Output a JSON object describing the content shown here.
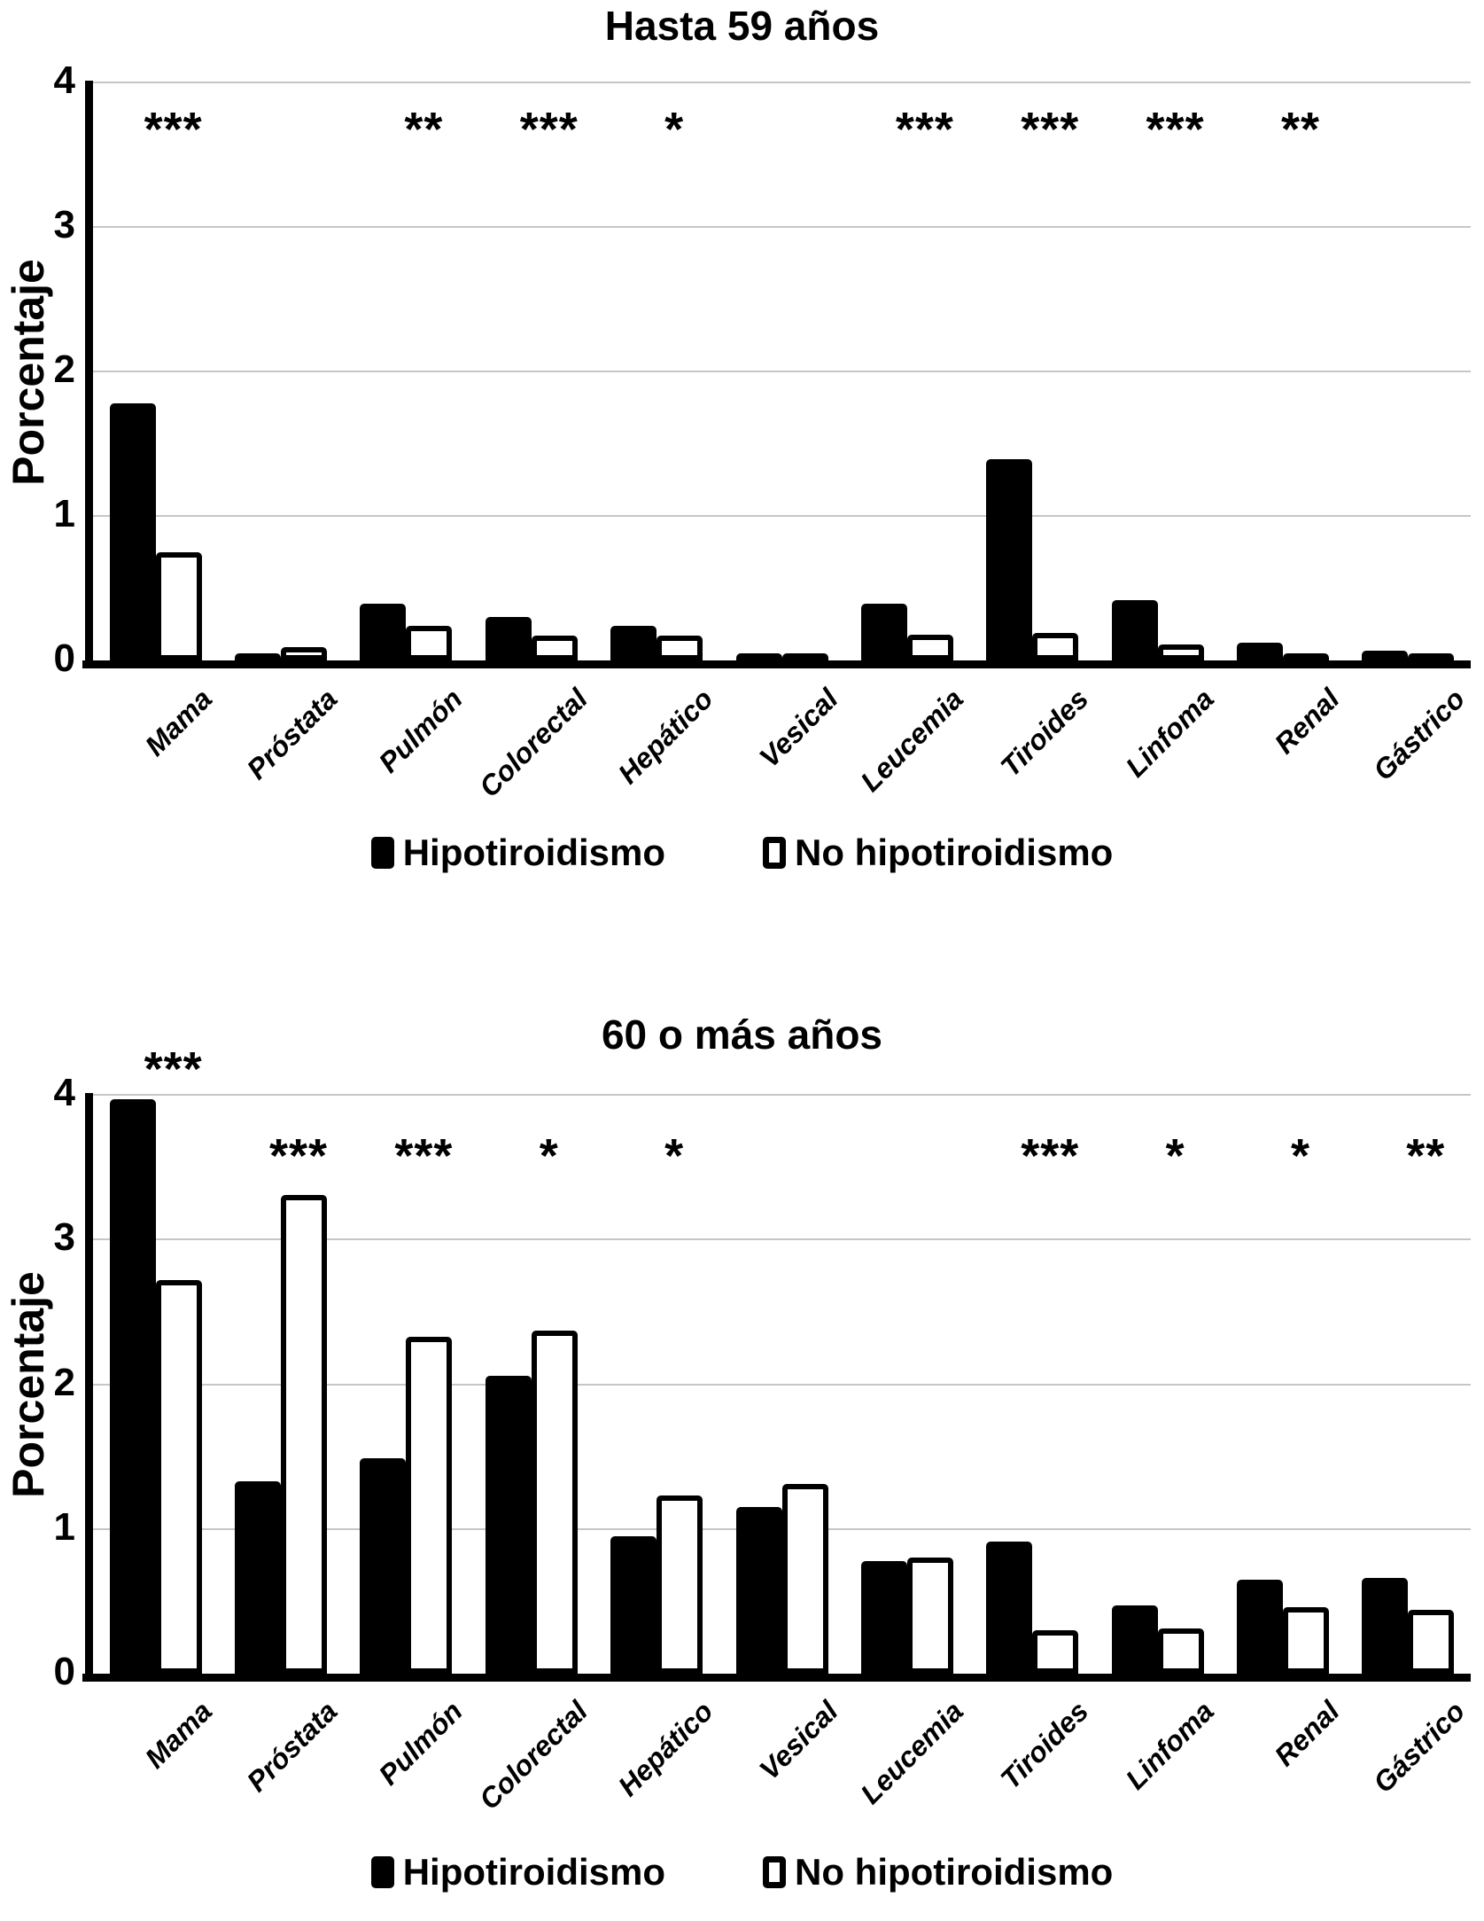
{
  "figure": {
    "background_color": "#ffffff",
    "gridline_color": "#c6c6c6",
    "axis_color": "#000000"
  },
  "legend": {
    "items": [
      {
        "label": "Hipotiroidismo",
        "swatch": "filled",
        "swatch_color": "#000000"
      },
      {
        "label": "No hipotiroidismo",
        "swatch": "outline",
        "swatch_color": "#ffffff"
      }
    ]
  },
  "chart_data": [
    {
      "type": "bar",
      "title": "Hasta 59 años",
      "xlabel": "",
      "ylabel": "Porcentaje",
      "ylim": [
        0,
        4
      ],
      "grid": true,
      "legend_position": "bottom",
      "y_ticks": [
        4,
        3,
        2,
        1,
        0
      ],
      "categories": [
        "Mama",
        "Próstata",
        "Pulmón",
        "Colorectal",
        "Hepático",
        "Vesical",
        "Leucemia",
        "Tiroides",
        "Linfoma",
        "Renal",
        "Gástrico"
      ],
      "series": [
        {
          "name": "Hipotiroidismo",
          "fill": "#000000",
          "style": "filled",
          "values": [
            1.78,
            0.05,
            0.39,
            0.3,
            0.24,
            0.05,
            0.39,
            1.39,
            0.42,
            0.12,
            0.07
          ]
        },
        {
          "name": "No hipotiroidismo",
          "fill": "#ffffff",
          "style": "outline",
          "values": [
            0.75,
            0.09,
            0.24,
            0.17,
            0.17,
            0.05,
            0.18,
            0.19,
            0.11,
            0.05,
            0.05
          ]
        }
      ],
      "significance": [
        {
          "mark": "***",
          "y": 3.72
        },
        null,
        {
          "mark": "**",
          "y": 3.72
        },
        {
          "mark": "***",
          "y": 3.72
        },
        {
          "mark": "*",
          "y": 3.72
        },
        null,
        {
          "mark": "***",
          "y": 3.72
        },
        {
          "mark": "***",
          "y": 3.72
        },
        {
          "mark": "***",
          "y": 3.72
        },
        {
          "mark": "**",
          "y": 3.72
        },
        null
      ]
    },
    {
      "type": "bar",
      "title": "60 o más años",
      "xlabel": "",
      "ylabel": "Porcentaje",
      "ylim": [
        0,
        4
      ],
      "grid": true,
      "legend_position": "bottom",
      "y_ticks": [
        4,
        3,
        2,
        1,
        0
      ],
      "categories": [
        "Mama",
        "Próstata",
        "Pulmón",
        "Colorectal",
        "Hepático",
        "Vesical",
        "Leucemia",
        "Tiroides",
        "Linfoma",
        "Renal",
        "Gástrico"
      ],
      "series": [
        {
          "name": "Hipotiroidismo",
          "fill": "#000000",
          "style": "filled",
          "values": [
            3.97,
            1.33,
            1.49,
            2.06,
            0.95,
            1.15,
            0.78,
            0.91,
            0.47,
            0.65,
            0.66
          ]
        },
        {
          "name": "No hipotiroidismo",
          "fill": "#ffffff",
          "style": "outline",
          "values": [
            2.72,
            3.31,
            2.33,
            2.37,
            1.23,
            1.31,
            0.8,
            0.3,
            0.31,
            0.46,
            0.44
          ]
        }
      ],
      "significance": [
        {
          "mark": "***",
          "y": 4.22
        },
        {
          "mark": "***",
          "y": 3.62
        },
        {
          "mark": "***",
          "y": 3.62
        },
        {
          "mark": "*",
          "y": 3.62
        },
        {
          "mark": "*",
          "y": 3.62
        },
        null,
        null,
        {
          "mark": "***",
          "y": 3.62
        },
        {
          "mark": "*",
          "y": 3.62
        },
        {
          "mark": "*",
          "y": 3.62
        },
        {
          "mark": "**",
          "y": 3.62
        }
      ]
    }
  ]
}
